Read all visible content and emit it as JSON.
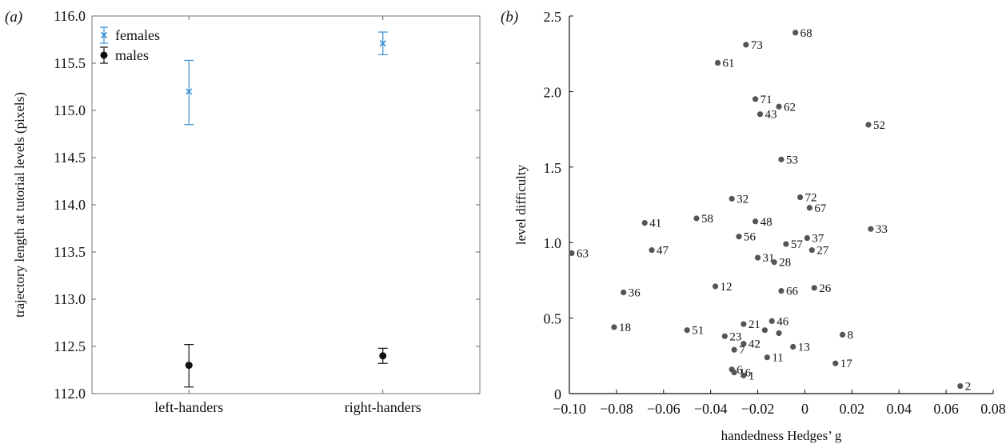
{
  "chart_data": [
    {
      "panel": "(a)",
      "type": "scatter",
      "subtype": "errorbar",
      "title": "",
      "xlabel": "",
      "ylabel": "trajectory length at tutorial levels (pixels)",
      "categories": [
        "left-handers",
        "right-handers"
      ],
      "ylim": [
        112.0,
        116.0
      ],
      "yticks": [
        "112.0",
        "112.5",
        "113.0",
        "113.5",
        "114.0",
        "114.5",
        "115.0",
        "115.5",
        "116.0"
      ],
      "grid": false,
      "legend_position": "top-left",
      "series": [
        {
          "name": "females",
          "marker": "x",
          "color": "#3a8fd1",
          "values": [
            115.2,
            115.71
          ],
          "err_low": [
            114.85,
            115.59
          ],
          "err_high": [
            115.53,
            115.83
          ]
        },
        {
          "name": "males",
          "marker": "circle",
          "color": "#111111",
          "values": [
            112.3,
            112.4
          ],
          "err_low": [
            112.07,
            112.32
          ],
          "err_high": [
            112.52,
            112.48
          ]
        }
      ]
    },
    {
      "panel": "(b)",
      "type": "scatter",
      "title": "",
      "xlabel": "handedness Hedges’ g",
      "ylabel": "level difficulty",
      "xlim": [
        -0.1,
        0.08
      ],
      "ylim": [
        0,
        2.5
      ],
      "xticks": [
        "−0.10",
        "−0.08",
        "−0.06",
        "−0.04",
        "−0.02",
        "0",
        "0.02",
        "0.04",
        "0.06",
        "0.08"
      ],
      "yticks": [
        "0",
        "0.5",
        "1.0",
        "1.5",
        "2.0",
        "2.5"
      ],
      "grid": false,
      "color": "#555555",
      "points": [
        {
          "label": "68",
          "x": -0.004,
          "y": 2.39
        },
        {
          "label": "73",
          "x": -0.025,
          "y": 2.31
        },
        {
          "label": "61",
          "x": -0.037,
          "y": 2.19
        },
        {
          "label": "71",
          "x": -0.021,
          "y": 1.95
        },
        {
          "label": "62",
          "x": -0.011,
          "y": 1.9
        },
        {
          "label": "43",
          "x": -0.019,
          "y": 1.85
        },
        {
          "label": "52",
          "x": 0.027,
          "y": 1.78
        },
        {
          "label": "53",
          "x": -0.01,
          "y": 1.55
        },
        {
          "label": "32",
          "x": -0.031,
          "y": 1.29
        },
        {
          "label": "72",
          "x": -0.002,
          "y": 1.3
        },
        {
          "label": "67",
          "x": 0.002,
          "y": 1.23
        },
        {
          "label": "41",
          "x": -0.068,
          "y": 1.13
        },
        {
          "label": "58",
          "x": -0.046,
          "y": 1.16
        },
        {
          "label": "48",
          "x": -0.021,
          "y": 1.14
        },
        {
          "label": "33",
          "x": 0.028,
          "y": 1.09
        },
        {
          "label": "56",
          "x": -0.028,
          "y": 1.04
        },
        {
          "label": "37",
          "x": 0.001,
          "y": 1.03
        },
        {
          "label": "57",
          "x": -0.008,
          "y": 0.99
        },
        {
          "label": "63",
          "x": -0.099,
          "y": 0.93
        },
        {
          "label": "47",
          "x": -0.065,
          "y": 0.95
        },
        {
          "label": "27",
          "x": 0.003,
          "y": 0.95
        },
        {
          "label": "31",
          "x": -0.02,
          "y": 0.9
        },
        {
          "label": "28",
          "x": -0.013,
          "y": 0.87
        },
        {
          "label": "12",
          "x": -0.038,
          "y": 0.71
        },
        {
          "label": "66",
          "x": -0.01,
          "y": 0.68
        },
        {
          "label": "26",
          "x": 0.004,
          "y": 0.7
        },
        {
          "label": "36",
          "x": -0.077,
          "y": 0.67
        },
        {
          "label": "18",
          "x": -0.081,
          "y": 0.44
        },
        {
          "label": "51",
          "x": -0.05,
          "y": 0.42
        },
        {
          "label": "21",
          "x": -0.026,
          "y": 0.46
        },
        {
          "label": "46",
          "x": -0.014,
          "y": 0.48
        },
        {
          "label": "",
          "x": -0.017,
          "y": 0.42
        },
        {
          "label": "",
          "x": -0.011,
          "y": 0.4
        },
        {
          "label": "8",
          "x": 0.016,
          "y": 0.39
        },
        {
          "label": "23",
          "x": -0.034,
          "y": 0.38
        },
        {
          "label": "42",
          "x": -0.026,
          "y": 0.33
        },
        {
          "label": "13",
          "x": -0.005,
          "y": 0.31
        },
        {
          "label": "7",
          "x": -0.03,
          "y": 0.29
        },
        {
          "label": "11",
          "x": -0.016,
          "y": 0.24
        },
        {
          "label": "17",
          "x": 0.013,
          "y": 0.2
        },
        {
          "label": "6",
          "x": -0.031,
          "y": 0.16
        },
        {
          "label": "16",
          "x": -0.03,
          "y": 0.14
        },
        {
          "label": "1",
          "x": -0.026,
          "y": 0.12
        },
        {
          "label": "2",
          "x": 0.066,
          "y": 0.05
        }
      ]
    }
  ]
}
